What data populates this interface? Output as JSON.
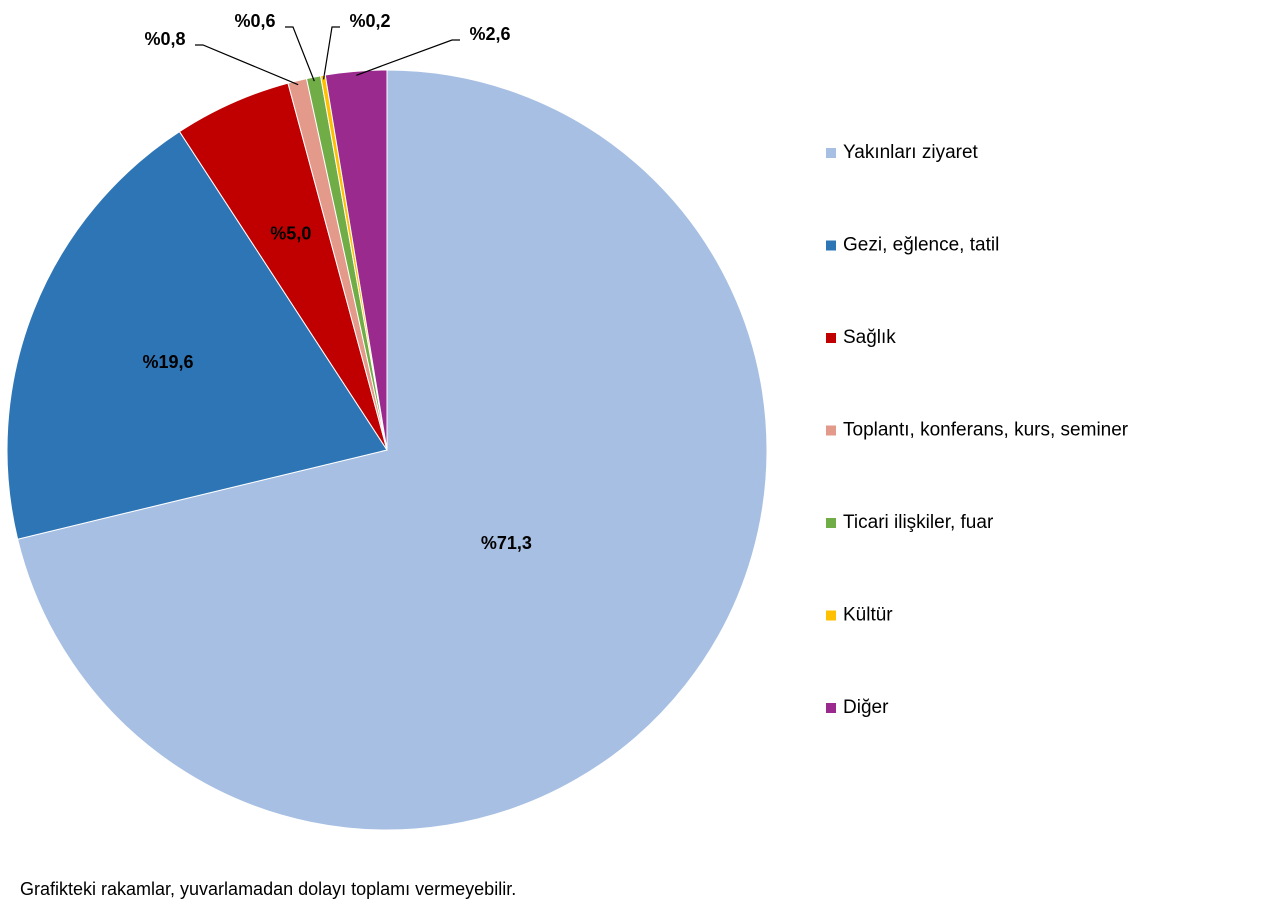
{
  "chart_data": {
    "type": "pie",
    "categories": [
      "Yakınları ziyaret",
      "Gezi, eğlence, tatil",
      "Sağlık",
      "Toplantı, konferans, kurs, seminer",
      "Ticari ilişkiler, fuar",
      "Kültür",
      "Diğer"
    ],
    "values": [
      71.3,
      19.6,
      5.0,
      0.8,
      0.6,
      0.2,
      2.6
    ],
    "value_labels": [
      "%71,3",
      "%19,6",
      "%5,0",
      "%0,8",
      "%0,6",
      "%0,2",
      "%2,6"
    ],
    "colors": [
      "#a7bfe3",
      "#2e75b6",
      "#c00000",
      "#e39a8a",
      "#70ad47",
      "#ffc000",
      "#9b2a8f"
    ],
    "legend": "right",
    "footnote": "Grafikteki rakamlar, yuvarlamadan dolayı toplamı vermeyebilir."
  }
}
